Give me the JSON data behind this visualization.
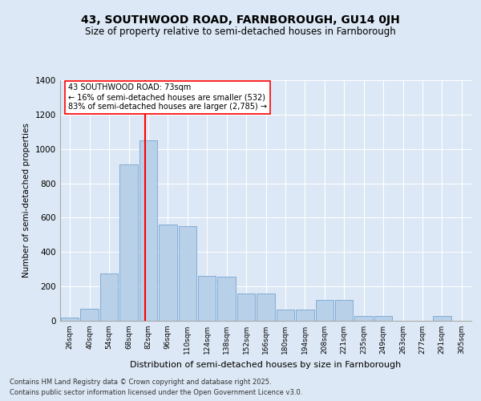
{
  "title1": "43, SOUTHWOOD ROAD, FARNBOROUGH, GU14 0JH",
  "title2": "Size of property relative to semi-detached houses in Farnborough",
  "xlabel": "Distribution of semi-detached houses by size in Farnborough",
  "ylabel": "Number of semi-detached properties",
  "categories": [
    "26sqm",
    "40sqm",
    "54sqm",
    "68sqm",
    "82sqm",
    "96sqm",
    "110sqm",
    "124sqm",
    "138sqm",
    "152sqm",
    "166sqm",
    "180sqm",
    "194sqm",
    "208sqm",
    "221sqm",
    "235sqm",
    "249sqm",
    "263sqm",
    "277sqm",
    "291sqm",
    "305sqm"
  ],
  "values": [
    20,
    70,
    275,
    910,
    1050,
    560,
    550,
    260,
    255,
    160,
    160,
    65,
    65,
    120,
    120,
    30,
    30,
    0,
    0,
    30,
    0
  ],
  "bar_color": "#b8d0e8",
  "bar_edge_color": "#6699cc",
  "annotation_title": "43 SOUTHWOOD ROAD: 73sqm",
  "annotation_line1": "← 16% of semi-detached houses are smaller (532)",
  "annotation_line2": "83% of semi-detached houses are larger (2,785) →",
  "footer1": "Contains HM Land Registry data © Crown copyright and database right 2025.",
  "footer2": "Contains public sector information licensed under the Open Government Licence v3.0.",
  "bg_color": "#dce8f5",
  "ylim": [
    0,
    1400
  ],
  "yticks": [
    0,
    200,
    400,
    600,
    800,
    1000,
    1200,
    1400
  ]
}
